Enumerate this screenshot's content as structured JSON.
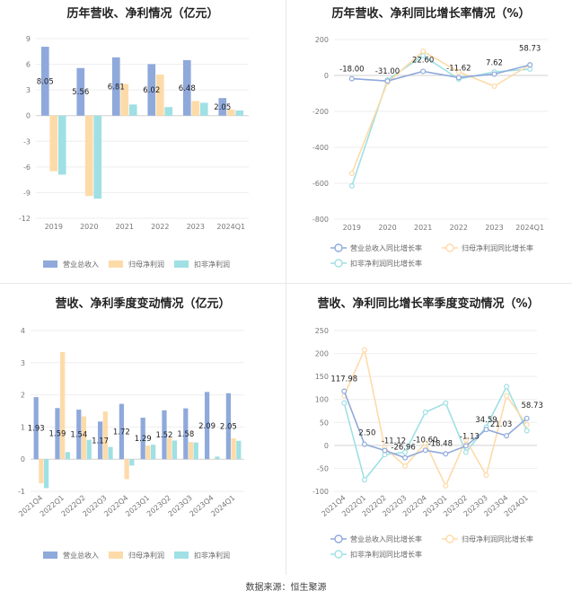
{
  "source": "数据来源：恒生聚源",
  "colors": {
    "revenue": "#8fa9db",
    "net_profit": "#fddba9",
    "deducted": "#9fe0e4"
  },
  "chart_data": [
    {
      "id": "annual_bar",
      "type": "bar",
      "title": "历年营收、净利情况（亿元）",
      "categories": [
        "2019",
        "2020",
        "2021",
        "2022",
        "2023",
        "2024Q1"
      ],
      "series": [
        {
          "name": "营业总收入",
          "values": [
            8.05,
            5.56,
            6.81,
            6.02,
            6.48,
            2.05
          ],
          "labels": [
            "8.05",
            "5.56",
            "6.81",
            "6.02",
            "6.48",
            "2.05"
          ]
        },
        {
          "name": "归母净利润",
          "values": [
            -6.5,
            -9.4,
            3.7,
            4.8,
            1.7,
            0.7
          ]
        },
        {
          "name": "扣非净利润",
          "values": [
            -6.9,
            -9.7,
            1.3,
            1.0,
            1.5,
            0.6
          ]
        }
      ],
      "ylim": [
        -12,
        9
      ],
      "yticks": [
        "9",
        "6",
        "3",
        "0",
        "-3",
        "-6",
        "-9",
        "-12"
      ],
      "ytick_values": [
        9,
        6,
        3,
        0,
        -3,
        -6,
        -9,
        -12
      ]
    },
    {
      "id": "annual_line",
      "type": "line",
      "title": "历年营收、净利同比增长率情况（%）",
      "categories": [
        "2019",
        "2020",
        "2021",
        "2022",
        "2023",
        "2024Q1"
      ],
      "series": [
        {
          "name": "营业总收入同比增长率",
          "values": [
            -18.0,
            -31.0,
            22.6,
            -11.62,
            7.62,
            58.73
          ],
          "labels": [
            "-18.00",
            "-31.00",
            "22.60",
            "-11.62",
            "7.62",
            "58.73"
          ]
        },
        {
          "name": "归母净利润同比增长率",
          "values": [
            -545,
            -40,
            135,
            20,
            -60,
            60
          ]
        },
        {
          "name": "扣非净利润同比增长率",
          "values": [
            -615,
            -25,
            110,
            -20,
            20,
            35
          ]
        }
      ],
      "ylim": [
        -800,
        200
      ],
      "yticks": [
        "200",
        "0",
        "-200",
        "-400",
        "-600",
        "-800"
      ],
      "ytick_values": [
        200,
        0,
        -200,
        -400,
        -600,
        -800
      ]
    },
    {
      "id": "quarter_bar",
      "type": "bar",
      "title": "营收、净利季度变动情况（亿元）",
      "categories": [
        "2021Q4",
        "2022Q1",
        "2022Q2",
        "2022Q3",
        "2022Q4",
        "2023Q1",
        "2023Q2",
        "2023Q3",
        "2023Q4",
        "2024Q1"
      ],
      "series": [
        {
          "name": "营业总收入",
          "values": [
            1.93,
            1.59,
            1.54,
            1.17,
            1.72,
            1.29,
            1.52,
            1.58,
            2.09,
            2.05
          ],
          "labels": [
            "1.93",
            "1.59",
            "1.54",
            "1.17",
            "1.72",
            "1.29",
            "1.52",
            "1.58",
            "2.09",
            "2.05"
          ]
        },
        {
          "name": "归母净利润",
          "values": [
            -0.75,
            3.33,
            1.33,
            1.48,
            -0.62,
            0.42,
            0.66,
            0.53,
            -0.02,
            0.65
          ]
        },
        {
          "name": "扣非净利润",
          "values": [
            -0.9,
            0.22,
            0.6,
            0.38,
            -0.2,
            0.45,
            0.58,
            0.52,
            0.08,
            0.57
          ]
        }
      ],
      "ylim": [
        -1,
        4
      ],
      "yticks": [
        "4",
        "3",
        "2",
        "1",
        "0",
        "-1"
      ],
      "ytick_values": [
        4,
        3,
        2,
        1,
        0,
        -1
      ]
    },
    {
      "id": "quarter_line",
      "type": "line",
      "title": "营收、净利同比增长率季度变动情况（%）",
      "categories": [
        "2021Q4",
        "2022Q1",
        "2022Q2",
        "2022Q3",
        "2022Q4",
        "2023Q1",
        "2023Q2",
        "2023Q3",
        "2023Q4",
        "2024Q1"
      ],
      "series": [
        {
          "name": "营业总收入同比增长率",
          "values": [
            117.98,
            2.5,
            -11.12,
            -26.96,
            -10.6,
            -18.48,
            -1.13,
            34.59,
            21.03,
            58.73
          ],
          "labels": [
            "117.98",
            "2.50",
            "-11.12",
            "-26.96",
            "-10.60",
            "-18.48",
            "-1.13",
            "34.59",
            "21.03",
            "58.73"
          ]
        },
        {
          "name": "归母净利润同比增长率",
          "values": [
            108,
            208,
            -5,
            -45,
            5,
            -88,
            12,
            -65,
            108,
            45
          ]
        },
        {
          "name": "扣非净利润同比增长率",
          "values": [
            92,
            -75,
            -20,
            -15,
            72,
            92,
            -15,
            40,
            128,
            32
          ]
        }
      ],
      "ylim": [
        -100,
        250
      ],
      "yticks": [
        "250",
        "200",
        "150",
        "100",
        "50",
        "0",
        "-50",
        "-100"
      ],
      "ytick_values": [
        250,
        200,
        150,
        100,
        50,
        0,
        -50,
        -100
      ]
    }
  ]
}
